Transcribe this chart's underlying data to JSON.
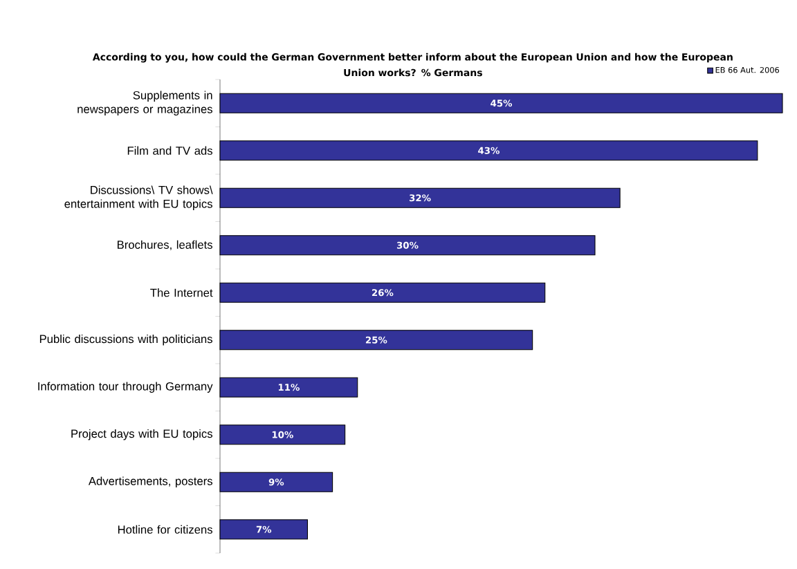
{
  "chart_data": {
    "type": "bar",
    "orientation": "horizontal",
    "title": "According to you, how could the German Government better inform about the European Union and how the European Union works? % Germans",
    "categories": [
      "Supplements in newspapers or magazines",
      "Film and TV ads",
      "Discussions\\ TV shows\\ entertainment with EU topics",
      "Brochures, leaflets",
      "The Internet",
      "Public discussions with politicians",
      "Information tour through Germany",
      "Project days with EU topics",
      "Advertisements, posters",
      "Hotline for citizens"
    ],
    "series": [
      {
        "name": "EB 66 Aut. 2006",
        "color": "#333399",
        "values": [
          45,
          43,
          32,
          30,
          26,
          25,
          11,
          10,
          9,
          7
        ],
        "value_labels": [
          "45%",
          "43%",
          "32%",
          "30%",
          "26%",
          "25%",
          "11%",
          "10%",
          "9%",
          "7%"
        ]
      }
    ],
    "xlim": [
      0,
      45
    ],
    "tick_labels": "y",
    "legend": "top right"
  }
}
